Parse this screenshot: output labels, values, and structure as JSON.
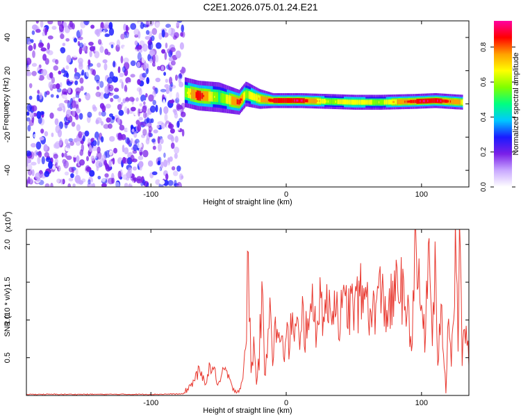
{
  "title": "C2E1.2026.075.01.24.E21",
  "chart_data": [
    {
      "type": "heatmap",
      "xlabel": "Height of straight line (km)",
      "ylabel": "Frequency (Hz)",
      "xlim": [
        -192,
        135
      ],
      "ylim": [
        -50,
        50
      ],
      "xticks": [
        -100,
        0,
        100
      ],
      "yticks": [
        -40,
        -20,
        0,
        20,
        40
      ],
      "colorbar": {
        "label": "Normalized spectral amplitude",
        "ticks": [
          0.0,
          0.2,
          0.4,
          0.6,
          0.8
        ],
        "range": [
          0,
          0.95
        ],
        "colors": [
          "#ffffff",
          "#c9a8ff",
          "#7a1fe8",
          "#1a1aff",
          "#00c8ff",
          "#00ff80",
          "#80ff00",
          "#ffff00",
          "#ffa000",
          "#ff0000",
          "#ff00a0"
        ]
      },
      "noise_region": {
        "x": [
          -192,
          -76
        ],
        "f": [
          -50,
          50
        ],
        "amplitude": [
          0.0,
          0.3
        ]
      },
      "signal_band": [
        {
          "x": -75,
          "f": 7,
          "width": 6,
          "amplitude": 0.55
        },
        {
          "x": -65,
          "f": 5,
          "width": 6,
          "amplitude": 0.9
        },
        {
          "x": -50,
          "f": 4,
          "width": 6,
          "amplitude": 0.5
        },
        {
          "x": -35,
          "f": 1,
          "width": 5,
          "amplitude": 0.85
        },
        {
          "x": -30,
          "f": 6,
          "width": 5,
          "amplitude": 0.6
        },
        {
          "x": -20,
          "f": 3,
          "width": 4,
          "amplitude": 0.7
        },
        {
          "x": -10,
          "f": 2,
          "width": 3,
          "amplitude": 0.85
        },
        {
          "x": 0,
          "f": 2,
          "width": 3,
          "amplitude": 0.9
        },
        {
          "x": 10,
          "f": 2,
          "width": 3,
          "amplitude": 0.9
        },
        {
          "x": 30,
          "f": 1.5,
          "width": 3,
          "amplitude": 0.6
        },
        {
          "x": 50,
          "f": 1,
          "width": 3,
          "amplitude": 0.65
        },
        {
          "x": 70,
          "f": 1,
          "width": 3,
          "amplitude": 0.6
        },
        {
          "x": 95,
          "f": 1.5,
          "width": 3,
          "amplitude": 0.85
        },
        {
          "x": 110,
          "f": 2,
          "width": 3,
          "amplitude": 0.9
        },
        {
          "x": 130,
          "f": 1,
          "width": 3,
          "amplitude": 0.7
        }
      ]
    },
    {
      "type": "line",
      "xlabel": "Height of straight line (km)",
      "ylabel": "SNR (10 * v/v)",
      "multiplier_label": "(x10",
      "multiplier_exp": "4",
      "multiplier_close": ")",
      "xlim": [
        -192,
        135
      ],
      "ylim": [
        0,
        22000
      ],
      "xticks": [
        -100,
        0,
        100
      ],
      "yticks": [
        5000,
        10000,
        15000,
        20000
      ],
      "ytick_labels": [
        "0.5",
        "1.0",
        "1.5",
        "2.0"
      ],
      "color": "#e8372e",
      "series": [
        {
          "x": [
            -192,
            -150,
            -100,
            -76,
            -70,
            -65,
            -60,
            -55,
            -50,
            -45,
            -40,
            -35,
            -32,
            -30,
            -28,
            -26,
            -24,
            -22,
            -20,
            -18,
            -16,
            -14,
            -12,
            -10,
            -8,
            -6,
            -4,
            -2,
            0,
            2,
            4,
            6,
            8,
            10,
            12,
            14,
            16,
            18,
            20,
            22,
            25,
            30,
            35,
            40,
            45,
            50,
            55,
            58,
            60,
            62,
            65,
            70,
            75,
            80,
            85,
            88,
            90,
            92,
            95,
            100,
            103,
            105,
            108,
            110,
            112,
            115,
            118,
            120,
            122,
            125,
            127,
            128,
            130,
            133,
            135
          ],
          "y": [
            150,
            150,
            150,
            200,
            1500,
            3000,
            2000,
            4000,
            1500,
            3500,
            1000,
            500,
            2500,
            5500,
            19200,
            3000,
            6500,
            2000,
            5000,
            14000,
            2500,
            7000,
            15800,
            5000,
            9000,
            6000,
            10000,
            4500,
            8000,
            6500,
            11000,
            7000,
            9500,
            5500,
            10500,
            8000,
            12000,
            10000,
            11500,
            9500,
            12500,
            11000,
            13000,
            10500,
            12000,
            11500,
            13000,
            12000,
            16500,
            9000,
            12000,
            13500,
            11000,
            13000,
            15500,
            9000,
            14000,
            6000,
            17500,
            12000,
            7000,
            20000,
            8500,
            16000,
            5000,
            10500,
            500,
            14000,
            4000,
            18500,
            8000,
            22000,
            5000,
            10000,
            4000
          ]
        }
      ]
    }
  ]
}
